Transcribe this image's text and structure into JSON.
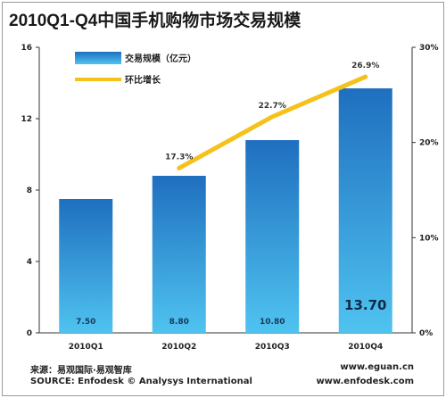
{
  "title": "2010Q1-Q4中国手机购物市场交易规模",
  "chart_data": {
    "type": "bar",
    "categories": [
      "2010Q1",
      "2010Q2",
      "2010Q3",
      "2010Q4"
    ],
    "series": [
      {
        "name": "交易规模（亿元）",
        "type": "bar",
        "axis": "left",
        "values": [
          7.5,
          8.8,
          10.8,
          13.7
        ],
        "labels": [
          "7.50",
          "8.80",
          "10.80",
          "13.70"
        ]
      },
      {
        "name": "环比增长",
        "type": "line",
        "axis": "right",
        "values": [
          null,
          17.3,
          22.7,
          26.9
        ],
        "labels": [
          "",
          "17.3%",
          "22.7%",
          "26.9%"
        ]
      }
    ],
    "y_left": {
      "ylim": [
        0,
        16
      ],
      "ticks": [
        "0",
        "4",
        "8",
        "12",
        "16"
      ]
    },
    "y_right": {
      "ylim": [
        0,
        30
      ],
      "ticks": [
        "0%",
        "10%",
        "20%",
        "30%"
      ]
    },
    "legend_position": "top-left",
    "grid": false,
    "colors": {
      "bar_top": "#1f6fbf",
      "bar_bottom": "#4fc3f0",
      "line": "#f5c21b"
    }
  },
  "footer": {
    "source_cn": "来源：易观国际·易观智库",
    "source_en": "SOURCE: Enfodesk © Analysys International",
    "url1": "www.eguan.cn",
    "url2": "www.enfodesk.com"
  }
}
